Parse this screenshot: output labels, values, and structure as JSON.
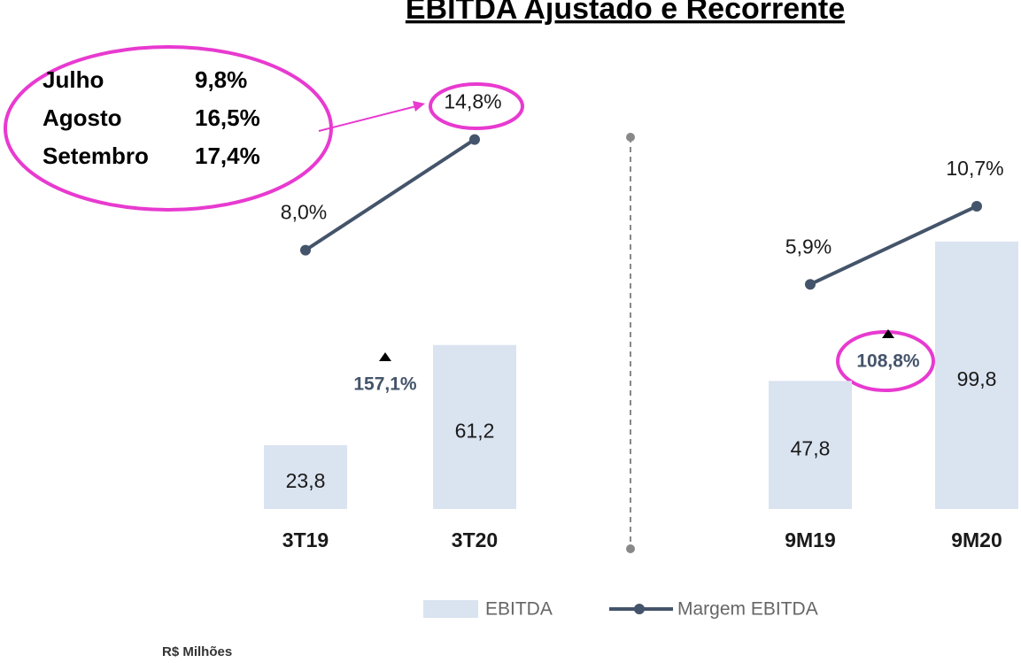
{
  "title": "EBITDA Ajustado e Recorrente",
  "unit_note": "R$ Milhões",
  "callout": [
    [
      "Julho",
      "9,8%"
    ],
    [
      "Agosto",
      "16,5%"
    ],
    [
      "Setembro",
      "17,4%"
    ]
  ],
  "chart_data": [
    {
      "type": "bar",
      "categories": [
        "3T19",
        "3T20"
      ],
      "ylim": [
        0,
        147
      ],
      "y2lim": [
        -7.9,
        16.3
      ],
      "annotation": "157,1%",
      "series": [
        {
          "name": "EBITDA",
          "color": "#dae3f0",
          "values": [
            23.8,
            61.2
          ],
          "value_labels": [
            "23,8",
            "61,2"
          ]
        },
        {
          "name": "Margem EBITDA",
          "color": "#44546a",
          "axis": "y2",
          "values": [
            8.0,
            14.8
          ],
          "value_labels": [
            "8,0%",
            "14,8%"
          ]
        }
      ]
    },
    {
      "type": "bar",
      "categories": [
        "9M19",
        "9M20"
      ],
      "ylim": [
        0,
        147
      ],
      "y2lim": [
        -7.9,
        16.3
      ],
      "annotation": "108,8%",
      "series": [
        {
          "color": "#dae3f0",
          "values": [
            47.8,
            99.8
          ],
          "value_labels": [
            "47,8",
            "99,8"
          ]
        },
        {
          "color": "#44546a",
          "axis": "y2",
          "values": [
            5.9,
            10.7
          ],
          "value_labels": [
            "5,9%",
            "10,7%"
          ]
        }
      ]
    }
  ]
}
